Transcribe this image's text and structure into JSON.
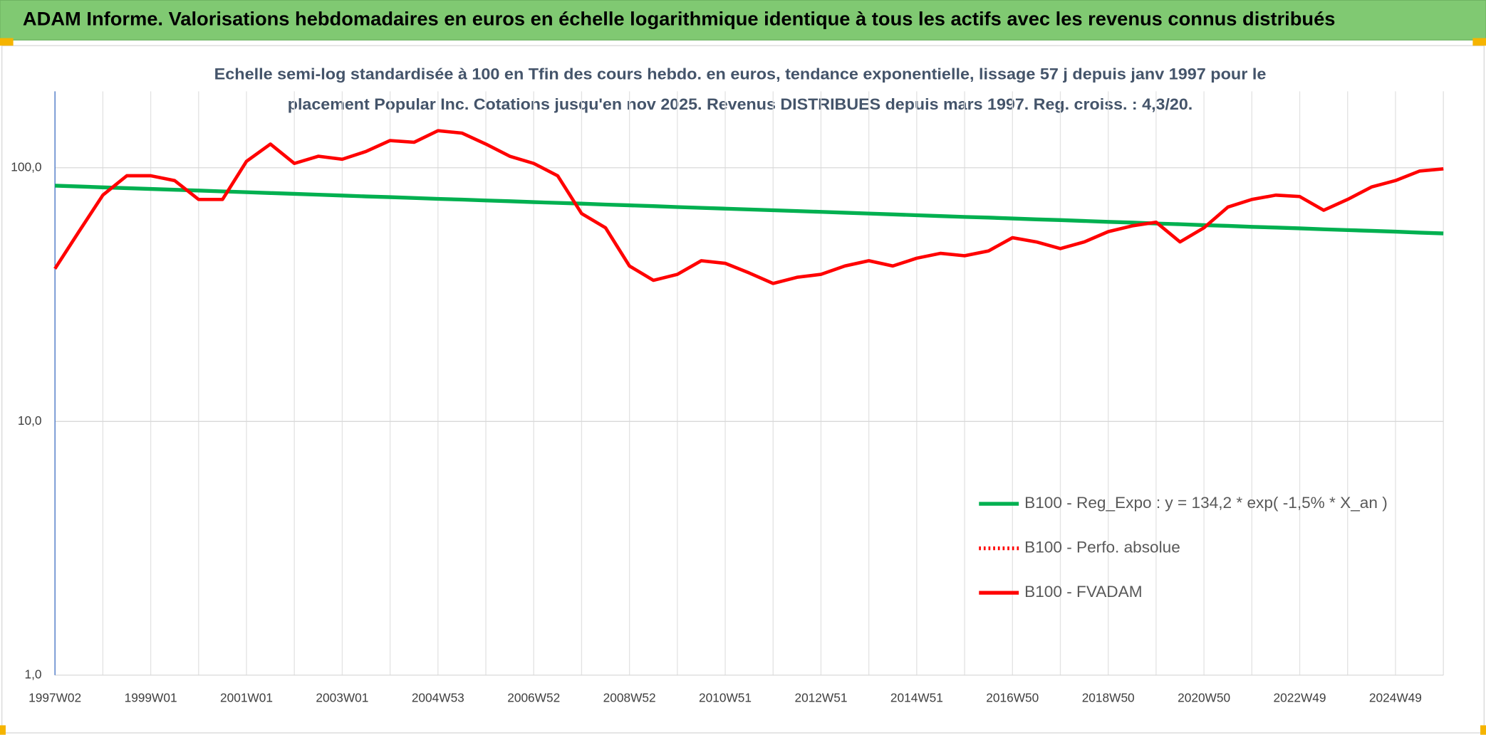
{
  "header": {
    "title": "ADAM Informe. Valorisations hebdomadaires en euros en échelle logarithmique identique à tous les actifs avec les revenus connus distribués"
  },
  "chart_data": {
    "type": "line",
    "title": [
      "Echelle semi-log standardisée à 100 en Tfin des cours hebdo. en euros, tendance exponentielle, lissage 57 j depuis janv 1997 pour le",
      "placement Popular Inc. Cotations jusqu'en nov 2025. Revenus DISTRIBUES depuis mars 1997. Reg. croiss. : 4,3/20."
    ],
    "categories": [
      "1997W02",
      null,
      null,
      null,
      "1999W01",
      null,
      null,
      null,
      "2001W01",
      null,
      null,
      null,
      "2003W01",
      null,
      null,
      null,
      "2004W53",
      null,
      null,
      null,
      "2006W52",
      null,
      null,
      null,
      "2008W52",
      null,
      null,
      null,
      "2010W51",
      null,
      null,
      null,
      "2012W51",
      null,
      null,
      null,
      "2014W51",
      null,
      null,
      null,
      "2016W50",
      null,
      null,
      null,
      "2018W50",
      null,
      null,
      null,
      "2020W50",
      null,
      null,
      null,
      "2022W49",
      null,
      null,
      null,
      "2024W49",
      null,
      null
    ],
    "series": [
      {
        "name": "B100 - Reg_Expo : y = 134,2 * exp( -1,5% *  X_an )",
        "color": "#00b050",
        "style": "solid",
        "values": [
          85.0,
          84.4,
          83.7,
          83.1,
          82.5,
          81.9,
          81.3,
          80.7,
          80.1,
          79.5,
          78.9,
          78.3,
          77.7,
          77.1,
          76.6,
          76.0,
          75.4,
          74.9,
          74.3,
          73.8,
          73.2,
          72.7,
          72.2,
          71.6,
          71.1,
          70.6,
          70.0,
          69.5,
          69.0,
          68.5,
          68.0,
          67.5,
          67.0,
          66.5,
          66.0,
          65.5,
          65.0,
          64.5,
          64.0,
          63.6,
          63.1,
          62.6,
          62.2,
          61.7,
          61.2,
          60.8,
          60.3,
          59.9,
          59.4,
          59.0,
          58.5,
          58.1,
          57.7,
          57.2,
          56.8,
          56.4,
          56.0,
          55.5,
          55.1
        ]
      },
      {
        "name": "B100 - Perfo. absolue",
        "color": "#ff0000",
        "style": "dotted",
        "values": [
          40,
          56,
          78,
          93,
          93,
          89,
          75,
          75,
          106,
          124,
          104,
          111,
          108,
          116,
          128,
          126,
          140,
          137,
          124,
          111,
          104,
          93,
          66,
          58,
          41,
          36,
          38,
          43,
          42,
          38.5,
          35,
          37,
          38,
          41,
          43,
          41,
          44,
          46,
          45,
          47,
          53,
          51,
          48,
          51,
          56,
          59,
          61,
          51,
          58,
          70,
          75,
          78,
          77,
          68,
          75,
          84,
          89,
          97,
          99
        ]
      },
      {
        "name": "B100 - FVADAM",
        "color": "#ff0000",
        "style": "solid",
        "values": [
          40,
          56,
          78,
          93,
          93,
          89,
          75,
          75,
          106,
          124,
          104,
          111,
          108,
          116,
          128,
          126,
          140,
          137,
          124,
          111,
          104,
          93,
          66,
          58,
          41,
          36,
          38,
          43,
          42,
          38.5,
          35,
          37,
          38,
          41,
          43,
          41,
          44,
          46,
          45,
          47,
          53,
          51,
          48,
          51,
          56,
          59,
          61,
          51,
          58,
          70,
          75,
          78,
          77,
          68,
          75,
          84,
          89,
          97,
          99
        ]
      }
    ],
    "log_scale": true,
    "ylim": [
      1,
      200
    ],
    "yticks": [
      {
        "value": 1,
        "label": "1,0"
      },
      {
        "value": 10,
        "label": "10,0"
      },
      {
        "value": 100,
        "label": "100,0"
      }
    ],
    "grid": true,
    "legend": "right"
  }
}
